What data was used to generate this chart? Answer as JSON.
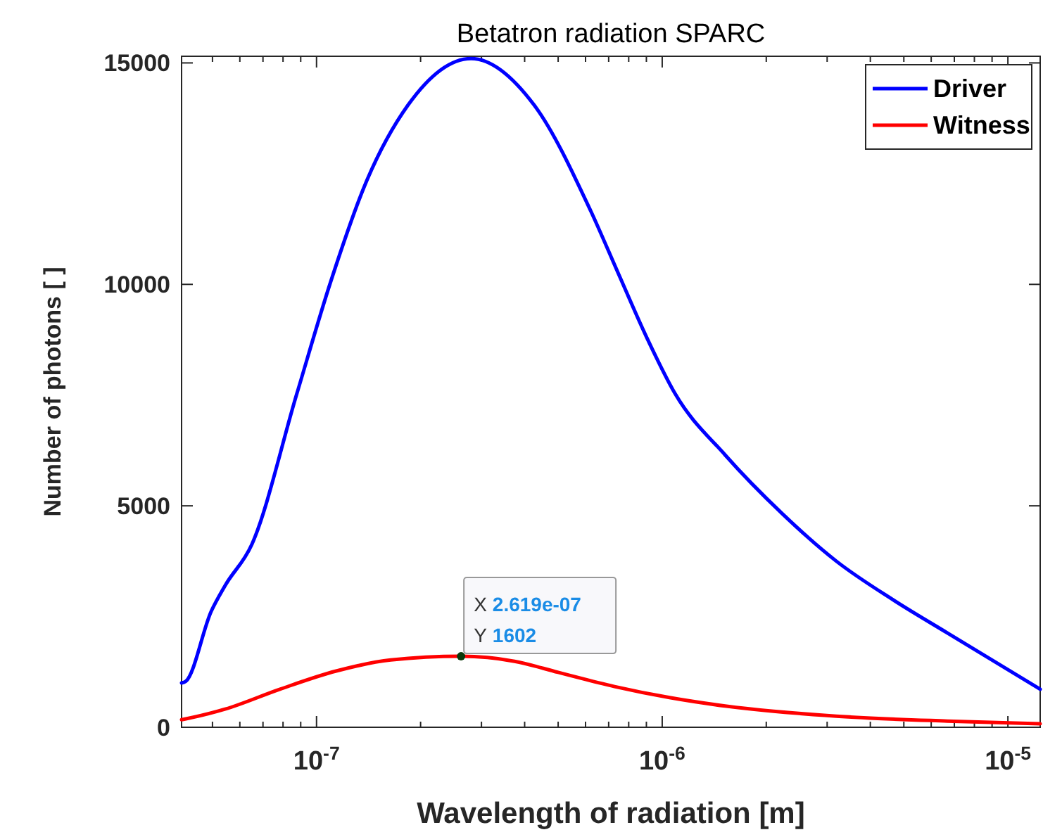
{
  "chart_data": {
    "type": "line",
    "title": "Betatron radiation SPARC",
    "xlabel": "Wavelength of radiation [m]",
    "ylabel": "Number of photons [ ]",
    "log": "x",
    "xlim": [
      4.07e-08,
      1.24e-05
    ],
    "ylim": [
      0,
      15150
    ],
    "xticks": [
      {
        "value": 1e-07,
        "label": "10$^{-7}$"
      },
      {
        "value": 1e-06,
        "label": "10$^{-6}$"
      },
      {
        "value": 1e-05,
        "label": "10$^{-5}$"
      }
    ],
    "yticks": [
      0,
      5000,
      10000,
      15000
    ],
    "grid": false,
    "legend": "top right",
    "marker": "none",
    "line_style": "solid",
    "series": [
      {
        "name": "Driver",
        "color": "#0000ff",
        "x": [
          4.07e-08,
          4.19e-08,
          4.96e-08,
          5.44e-08,
          6.5e-08,
          8.77e-08,
          1.1e-07,
          1.39e-07,
          1.84e-07,
          2.8e-07,
          4.26e-07,
          6.21e-07,
          7.48e-07,
          9.02e-07,
          1.09e-06,
          1.52e-06,
          2.22e-06,
          3.19e-06,
          4.65e-06,
          6.68e-06,
          1.24e-05
        ],
        "values": [
          1000,
          1040,
          2620,
          3200,
          4130,
          7530,
          10070,
          12300,
          14050,
          15100,
          14050,
          11660,
          10230,
          8800,
          7530,
          6150,
          4830,
          3750,
          2880,
          2130,
          860
        ]
      },
      {
        "name": "Witness",
        "color": "#ff0000",
        "x": [
          4.07e-08,
          4.19e-08,
          5.44e-08,
          7.84e-08,
          1.14e-07,
          1.64e-07,
          2.619e-07,
          3.74e-07,
          5e-07,
          7.28e-07,
          1.05e-06,
          1.52e-06,
          3.19e-06,
          6.68e-06,
          1.24e-05
        ],
        "values": [
          170,
          190,
          410,
          860,
          1270,
          1520,
          1602,
          1490,
          1240,
          920,
          670,
          480,
          250,
          140,
          80
        ]
      }
    ],
    "annotations": [
      {
        "text": "X 2.619e-07\nY 1602",
        "x": 2.619e-07,
        "y": 1602
      }
    ]
  }
}
